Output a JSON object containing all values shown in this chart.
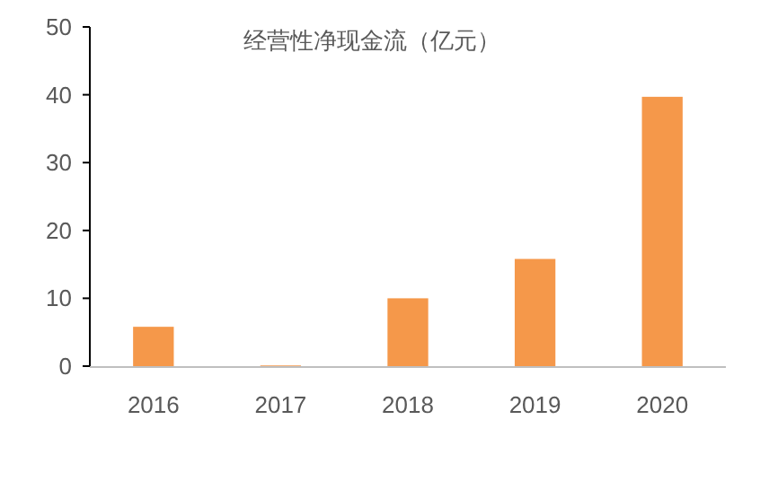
{
  "chart_data": {
    "type": "bar",
    "title": "经营性净现金流（亿元）",
    "categories": [
      "2016",
      "2017",
      "2018",
      "2019",
      "2020"
    ],
    "values": [
      5.8,
      0.1,
      10.0,
      15.8,
      39.7
    ],
    "color": "#f5984a",
    "ylim": [
      0,
      50
    ],
    "yticks": [
      0,
      10,
      20,
      30,
      40,
      50
    ],
    "grid": false
  }
}
